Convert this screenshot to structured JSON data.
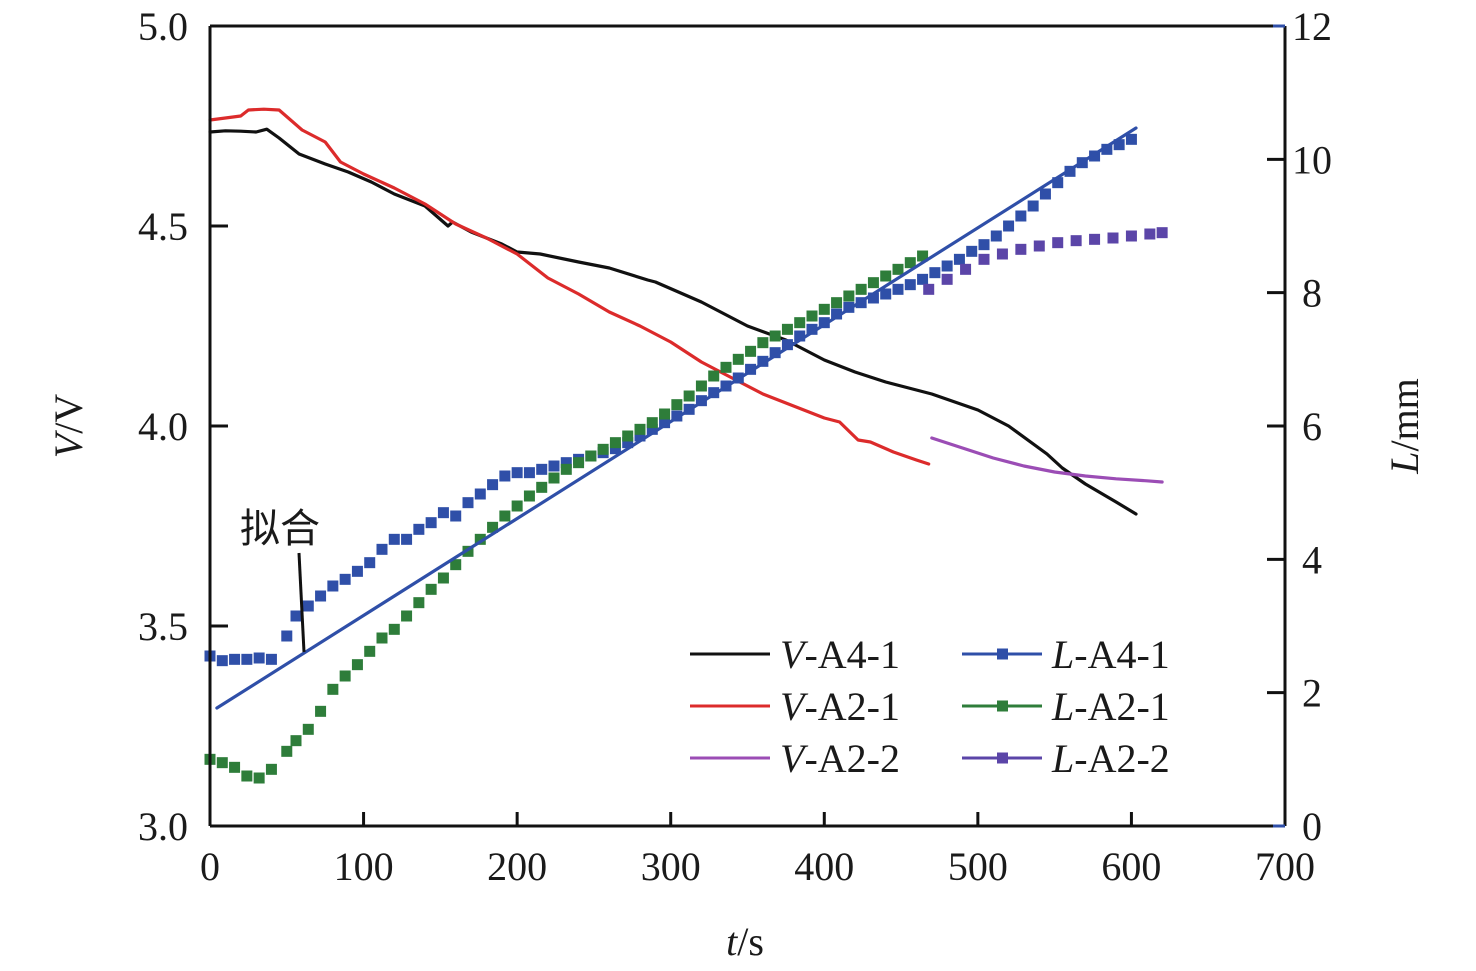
{
  "chart_data": {
    "type": "line",
    "title": "",
    "xlabel": {
      "italic": "t",
      "rest": "/s"
    },
    "ylabel_left": {
      "italic": "V",
      "rest": "/V"
    },
    "ylabel_right": {
      "italic": "L",
      "rest": "/mm"
    },
    "xlim": [
      0,
      700
    ],
    "ylim_left": [
      3.0,
      5.0
    ],
    "ylim_right": [
      0,
      12
    ],
    "x_ticks": [
      "0",
      "100",
      "200",
      "300",
      "400",
      "500",
      "600",
      "700"
    ],
    "x_tick_values": [
      0,
      100,
      200,
      300,
      400,
      500,
      600,
      700
    ],
    "y_left_ticks": [
      "3.0",
      "3.5",
      "4.0",
      "4.5",
      "5.0"
    ],
    "y_left_tick_values": [
      3.0,
      3.5,
      4.0,
      4.5,
      5.0
    ],
    "y_right_ticks": [
      "0",
      "2",
      "4",
      "6",
      "8",
      "10",
      "12"
    ],
    "y_right_tick_values": [
      0,
      2,
      4,
      6,
      8,
      10,
      12
    ],
    "grid": false,
    "legend_position": "bottom-right",
    "annotation": {
      "text": "拟合",
      "points_to": "L-A4-1 fit line",
      "at_t": 60
    },
    "series": [
      {
        "name": "V-A4-1",
        "italic": "V",
        "rest": "-A4-1",
        "axis": "left",
        "style": "line",
        "color": "#111111",
        "x": [
          0,
          10,
          20,
          30,
          37,
          45,
          58,
          75,
          90,
          105,
          120,
          140,
          155,
          158,
          170,
          190,
          200,
          215,
          240,
          260,
          285,
          290,
          320,
          350,
          375,
          400,
          420,
          440,
          470,
          500,
          520,
          545,
          555,
          570,
          590,
          603
        ],
        "y": [
          4.735,
          4.738,
          4.737,
          4.735,
          4.742,
          4.72,
          4.68,
          4.655,
          4.635,
          4.61,
          4.58,
          4.55,
          4.5,
          4.51,
          4.485,
          4.455,
          4.435,
          4.43,
          4.41,
          4.395,
          4.365,
          4.36,
          4.31,
          4.25,
          4.215,
          4.165,
          4.135,
          4.11,
          4.08,
          4.04,
          4.0,
          3.93,
          3.895,
          3.855,
          3.81,
          3.78
        ]
      },
      {
        "name": "V-A2-1",
        "italic": "V",
        "rest": "-A2-1",
        "axis": "left",
        "style": "line",
        "color": "#dc2b2b",
        "x": [
          0,
          10,
          20,
          25,
          35,
          45,
          60,
          75,
          85,
          100,
          120,
          140,
          160,
          180,
          200,
          220,
          240,
          260,
          280,
          300,
          320,
          340,
          360,
          380,
          400,
          410,
          418,
          422,
          430,
          445,
          460,
          468
        ],
        "y": [
          4.765,
          4.77,
          4.775,
          4.79,
          4.792,
          4.79,
          4.74,
          4.71,
          4.66,
          4.63,
          4.595,
          4.555,
          4.505,
          4.47,
          4.43,
          4.37,
          4.33,
          4.285,
          4.25,
          4.21,
          4.16,
          4.12,
          4.08,
          4.05,
          4.02,
          4.01,
          3.98,
          3.965,
          3.96,
          3.935,
          3.915,
          3.905
        ]
      },
      {
        "name": "V-A2-2",
        "italic": "V",
        "rest": "-A2-2",
        "axis": "left",
        "style": "line",
        "color": "#9b4db5",
        "x": [
          470,
          490,
          510,
          530,
          550,
          570,
          590,
          610,
          620
        ],
        "y": [
          3.97,
          3.945,
          3.92,
          3.9,
          3.885,
          3.875,
          3.868,
          3.863,
          3.86
        ]
      },
      {
        "name": "L-A4-1",
        "italic": "L",
        "rest": "-A4-1",
        "axis": "right",
        "style": "markers",
        "color": "#2f4fa8",
        "x": [
          0,
          8,
          16,
          24,
          32,
          40,
          50,
          56,
          64,
          72,
          80,
          88,
          96,
          104,
          112,
          120,
          128,
          136,
          144,
          152,
          160,
          168,
          176,
          184,
          192,
          200,
          208,
          216,
          224,
          232,
          240,
          248,
          256,
          264,
          272,
          280,
          288,
          296,
          304,
          312,
          320,
          328,
          336,
          344,
          352,
          360,
          368,
          376,
          384,
          392,
          400,
          408,
          416,
          424,
          432,
          440,
          448,
          456,
          464,
          472,
          480,
          488,
          496,
          504,
          512,
          520,
          528,
          536,
          544,
          552,
          560,
          568,
          576,
          584,
          592,
          600
        ],
        "y": [
          2.55,
          2.48,
          2.5,
          2.5,
          2.52,
          2.5,
          2.85,
          3.15,
          3.3,
          3.45,
          3.6,
          3.7,
          3.82,
          3.95,
          4.15,
          4.3,
          4.3,
          4.45,
          4.55,
          4.7,
          4.65,
          4.85,
          4.98,
          5.12,
          5.25,
          5.3,
          5.3,
          5.35,
          5.4,
          5.45,
          5.5,
          5.55,
          5.6,
          5.66,
          5.75,
          5.85,
          5.95,
          6.05,
          6.15,
          6.25,
          6.38,
          6.5,
          6.6,
          6.72,
          6.85,
          6.97,
          7.1,
          7.22,
          7.35,
          7.45,
          7.55,
          7.68,
          7.78,
          7.85,
          7.92,
          7.98,
          8.05,
          8.12,
          8.2,
          8.3,
          8.4,
          8.5,
          8.62,
          8.72,
          8.85,
          9.0,
          9.15,
          9.3,
          9.48,
          9.65,
          9.82,
          9.95,
          10.05,
          10.15,
          10.22,
          10.3
        ]
      },
      {
        "name": "L-A2-1",
        "italic": "L",
        "rest": "-A2-1",
        "axis": "right",
        "style": "markers",
        "color": "#2e7d3a",
        "x": [
          0,
          8,
          16,
          24,
          32,
          40,
          50,
          56,
          64,
          72,
          80,
          88,
          96,
          104,
          112,
          120,
          128,
          136,
          144,
          152,
          160,
          168,
          176,
          184,
          192,
          200,
          208,
          216,
          224,
          232,
          240,
          248,
          256,
          264,
          272,
          280,
          288,
          296,
          304,
          312,
          320,
          328,
          336,
          344,
          352,
          360,
          368,
          376,
          384,
          392,
          400,
          408,
          416,
          424,
          432,
          440,
          448,
          456,
          464
        ],
        "y": [
          1.0,
          0.95,
          0.88,
          0.75,
          0.72,
          0.85,
          1.12,
          1.28,
          1.45,
          1.72,
          2.05,
          2.25,
          2.42,
          2.62,
          2.82,
          2.95,
          3.15,
          3.35,
          3.55,
          3.72,
          3.92,
          4.12,
          4.3,
          4.48,
          4.65,
          4.8,
          4.95,
          5.08,
          5.22,
          5.35,
          5.45,
          5.55,
          5.65,
          5.75,
          5.85,
          5.95,
          6.05,
          6.18,
          6.32,
          6.45,
          6.6,
          6.75,
          6.88,
          7.0,
          7.12,
          7.25,
          7.35,
          7.45,
          7.55,
          7.65,
          7.75,
          7.85,
          7.95,
          8.05,
          8.15,
          8.25,
          8.35,
          8.45,
          8.55
        ]
      },
      {
        "name": "L-A2-2",
        "italic": "L",
        "rest": "-A2-2",
        "axis": "right",
        "style": "markers",
        "color": "#5b45a8",
        "x": [
          468,
          480,
          492,
          504,
          516,
          528,
          540,
          552,
          564,
          576,
          588,
          600,
          612,
          620
        ],
        "y": [
          8.05,
          8.2,
          8.35,
          8.5,
          8.58,
          8.65,
          8.7,
          8.75,
          8.78,
          8.8,
          8.82,
          8.85,
          8.88,
          8.9
        ]
      },
      {
        "name": "L-A4-1 fit",
        "axis": "right",
        "style": "fit-line",
        "color": "#2f4fa8",
        "x": [
          4.5,
          603
        ],
        "y": [
          1.77,
          10.47
        ]
      }
    ],
    "legend": [
      {
        "series": "V-A4-1",
        "italic": "V",
        "rest": "-A4-1",
        "color": "#111111",
        "marker": false
      },
      {
        "series": "V-A2-1",
        "italic": "V",
        "rest": "-A2-1",
        "color": "#dc2b2b",
        "marker": false
      },
      {
        "series": "V-A2-2",
        "italic": "V",
        "rest": "-A2-2",
        "color": "#9b4db5",
        "marker": false
      },
      {
        "series": "L-A4-1",
        "italic": "L",
        "rest": "-A4-1",
        "color": "#2f4fa8",
        "marker": true
      },
      {
        "series": "L-A2-1",
        "italic": "L",
        "rest": "-A2-1",
        "color": "#2e7d3a",
        "marker": true
      },
      {
        "series": "L-A2-2",
        "italic": "L",
        "rest": "-A2-2",
        "color": "#5b45a8",
        "marker": true
      }
    ]
  }
}
